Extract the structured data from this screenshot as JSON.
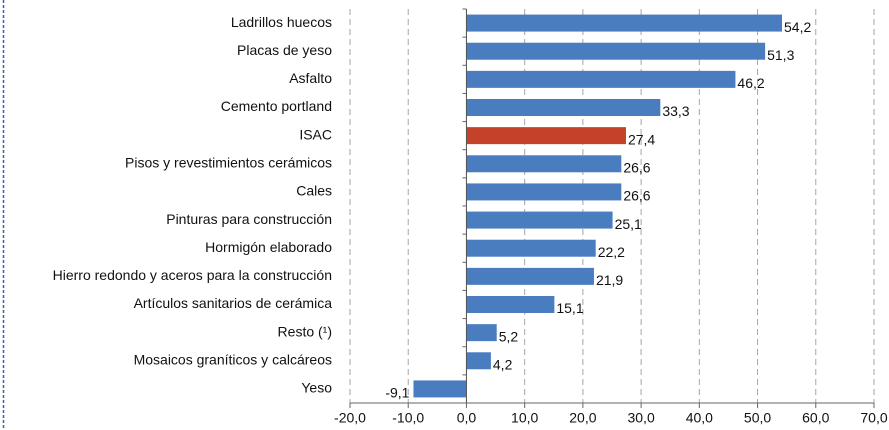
{
  "chart_data": {
    "type": "barh",
    "categories": [
      "Ladrillos huecos",
      "Placas de yeso",
      "Asfalto",
      "Cemento portland",
      "ISAC",
      "Pisos y revestimientos cerámicos",
      "Cales",
      "Pinturas para construcción",
      "Hormigón elaborado",
      "Hierro redondo y aceros para la construcción",
      "Artículos sanitarios de cerámica",
      "Resto (¹)",
      "Mosaicos graníticos y calcáreos",
      "Yeso"
    ],
    "values": [
      54.2,
      51.3,
      46.2,
      33.3,
      27.4,
      26.6,
      26.6,
      25.1,
      22.2,
      21.9,
      15.1,
      5.2,
      4.2,
      -9.1
    ],
    "value_labels": [
      "54,2",
      "51,3",
      "46,2",
      "33,3",
      "27,4",
      "26,6",
      "26,6",
      "25,1",
      "22,2",
      "21,9",
      "15,1",
      "5,2",
      "4,2",
      "-9,1"
    ],
    "colors": [
      "#4a7dc0",
      "#4a7dc0",
      "#4a7dc0",
      "#4a7dc0",
      "#c5422a",
      "#4a7dc0",
      "#4a7dc0",
      "#4a7dc0",
      "#4a7dc0",
      "#4a7dc0",
      "#4a7dc0",
      "#4a7dc0",
      "#4a7dc0",
      "#4a7dc0"
    ],
    "xlim": [
      -20,
      70
    ],
    "xticks": [
      {
        "value": -20,
        "label": "-20,0"
      },
      {
        "value": -10,
        "label": "-10,0"
      },
      {
        "value": 0,
        "label": "0,0"
      },
      {
        "value": 10,
        "label": "10,0"
      },
      {
        "value": 20,
        "label": "20,0"
      },
      {
        "value": 30,
        "label": "30,0"
      },
      {
        "value": 40,
        "label": "40,0"
      },
      {
        "value": 50,
        "label": "50,0"
      },
      {
        "value": 60,
        "label": "60,0"
      },
      {
        "value": 70,
        "label": "70,0"
      }
    ],
    "grid": true
  }
}
